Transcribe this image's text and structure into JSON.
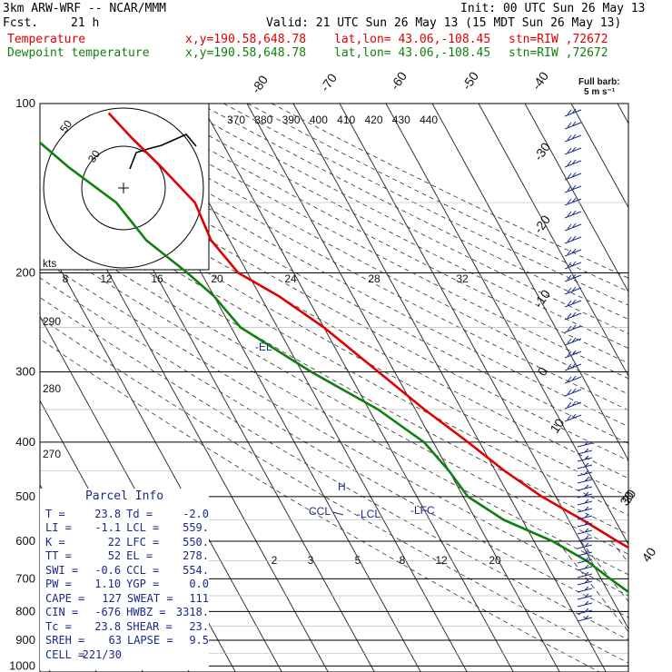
{
  "header": {
    "model": "3km ARW-WRF -- NCAR/MMM",
    "init": "Init: 00 UTC Sun 26 May 13",
    "fcst_label": "Fcst.",
    "fcst_value": "21 h",
    "valid": "Valid: 21 UTC Sun 26 May 13 (15 MDT Sun 26 May 13)",
    "lines": [
      {
        "name": "Temperature",
        "xy": "x,y=190.58,648.78",
        "latlon": "lat,lon= 43.06,-108.45",
        "stn": "stn=RIW ,72672",
        "color": "#e00000"
      },
      {
        "name": "Dewpoint temperature",
        "xy": "x,y=190.58,648.78",
        "latlon": "lat,lon= 43.06,-108.45",
        "stn": "stn=RIW ,72672",
        "color": "#108010"
      }
    ]
  },
  "chart_data": {
    "type": "line",
    "title": "Skew-T log-P diagram",
    "pressure_levels": [
      100,
      200,
      300,
      400,
      500,
      600,
      700,
      800,
      900,
      1000
    ],
    "isotherm_labels": [
      "-80",
      "-70",
      "-60",
      "-50",
      "-40",
      "-30",
      "-20",
      "-10",
      "0",
      "10",
      "20",
      "30",
      "40"
    ],
    "theta_e_labels": [
      "370",
      "380",
      "390",
      "400",
      "410",
      "420",
      "430",
      "440"
    ],
    "theta_labels": [
      "290",
      "280",
      "270"
    ],
    "mixing_ratio_labels": [
      "2",
      "3",
      "5",
      "8",
      "12",
      "20"
    ],
    "hodograph": {
      "axis_label": "kts",
      "ring_labels": [
        "50",
        "30"
      ],
      "speed_ticks": [
        "8",
        "12",
        "16",
        "20",
        "24",
        "28",
        "32"
      ]
    },
    "wind_legend": [
      "Full barb:",
      "5 m s⁻¹"
    ],
    "annotations": [
      "-EL",
      "CCL",
      "-LCL",
      "-LFC",
      "H"
    ],
    "series": [
      {
        "name": "Temperature",
        "color": "#e00000",
        "points": [
          [
            825,
            23.8
          ],
          [
            800,
            20
          ],
          [
            750,
            15
          ],
          [
            700,
            9
          ],
          [
            650,
            3
          ],
          [
            600,
            -2
          ],
          [
            550,
            -7
          ],
          [
            500,
            -13
          ],
          [
            450,
            -18
          ],
          [
            400,
            -22.5
          ],
          [
            350,
            -28
          ],
          [
            300,
            -33.5
          ],
          [
            250,
            -40
          ],
          [
            220,
            -46
          ],
          [
            200,
            -52
          ],
          [
            175,
            -54
          ],
          [
            150,
            -53
          ],
          [
            130,
            -56
          ],
          [
            115,
            -59
          ],
          [
            104,
            -61
          ]
        ]
      },
      {
        "name": "Dewpoint temperature",
        "color": "#108010",
        "points": [
          [
            825,
            -2
          ],
          [
            800,
            -3
          ],
          [
            750,
            -5
          ],
          [
            700,
            -8
          ],
          [
            650,
            -11
          ],
          [
            600,
            -16
          ],
          [
            550,
            -24
          ],
          [
            500,
            -29
          ],
          [
            450,
            -30
          ],
          [
            400,
            -32
          ],
          [
            350,
            -38
          ],
          [
            300,
            -48
          ],
          [
            250,
            -58
          ],
          [
            220,
            -60
          ],
          [
            200,
            -63
          ],
          [
            175,
            -68
          ],
          [
            150,
            -70
          ],
          [
            130,
            -76
          ],
          [
            115,
            -80
          ],
          [
            100,
            -84
          ]
        ]
      }
    ]
  },
  "parcel_info": {
    "title": "Parcel Info",
    "rows": [
      {
        "k1": "T",
        "v1": "23.8",
        "k2": "Td",
        "v2": "-2.0"
      },
      {
        "k1": "LI",
        "v1": "-1.1",
        "k2": "LCL",
        "v2": "559."
      },
      {
        "k1": "K",
        "v1": "22",
        "k2": "LFC",
        "v2": "550."
      },
      {
        "k1": "TT",
        "v1": "52",
        "k2": "EL",
        "v2": "278."
      },
      {
        "k1": "SWI",
        "v1": "-0.6",
        "k2": "CCL",
        "v2": "554."
      },
      {
        "k1": "PW",
        "v1": "1.10",
        "k2": "YGP",
        "v2": "0.0"
      },
      {
        "k1": "CAPE",
        "v1": "127",
        "k2": "SWEAT",
        "v2": "111"
      },
      {
        "k1": "CIN",
        "v1": "-676",
        "k2": "HWBZ",
        "v2": "3318."
      },
      {
        "k1": "Tc",
        "v1": "23.8",
        "k2": "SHEAR",
        "v2": "23."
      },
      {
        "k1": "SREH",
        "v1": "63",
        "k2": "LAPSE",
        "v2": "9.5"
      },
      {
        "k1": "CELL",
        "v1": "221/30",
        "k2": "",
        "v2": ""
      }
    ]
  }
}
